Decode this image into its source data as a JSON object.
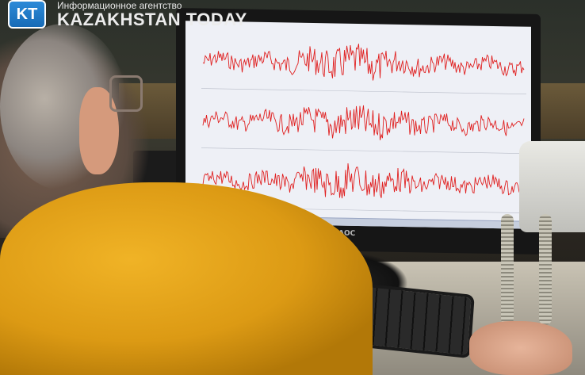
{
  "logo": {
    "mark": "KT",
    "subtitle": "Информационное агентство",
    "name": "KAZAKHSTAN TODAY",
    "color": "#1f7ac7"
  },
  "monitor": {
    "brand": "AOC",
    "trace_color": "#e02020",
    "trace_count": 3
  }
}
